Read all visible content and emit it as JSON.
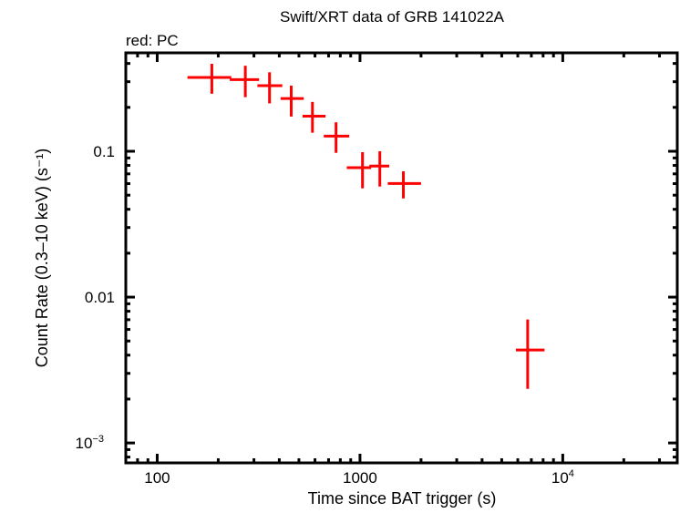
{
  "chart_data": {
    "type": "scatter",
    "title": "Swift/XRT data of GRB 141022A",
    "subtitle": "red: PC",
    "xlabel": "Time since BAT trigger (s)",
    "ylabel": "Count Rate (0.3–10 keV) (s⁻¹)",
    "xscale": "log",
    "yscale": "log",
    "xlim": [
      70,
      36700
    ],
    "ylim": [
      0.00073,
      0.473
    ],
    "grid": false,
    "x_ticks": [
      {
        "value": 100,
        "label": "100"
      },
      {
        "value": 1000,
        "label": "1000"
      },
      {
        "value": 10000,
        "label": "10",
        "sup": "4"
      }
    ],
    "y_ticks": [
      {
        "value": 0.1,
        "label": "0.1"
      },
      {
        "value": 0.01,
        "label": "0.01"
      },
      {
        "value": 0.001,
        "label": "10",
        "sup": "−3"
      }
    ],
    "series": [
      {
        "color": "#ff0000",
        "points": [
          {
            "x": 186,
            "xlo": 141,
            "xhi": 232,
            "y": 0.321,
            "ylo": 0.248,
            "yhi": 0.398
          },
          {
            "x": 272,
            "xlo": 228,
            "xhi": 318,
            "y": 0.31,
            "ylo": 0.235,
            "yhi": 0.386
          },
          {
            "x": 358,
            "xlo": 312,
            "xhi": 414,
            "y": 0.282,
            "ylo": 0.213,
            "yhi": 0.348
          },
          {
            "x": 458,
            "xlo": 406,
            "xhi": 528,
            "y": 0.23,
            "ylo": 0.173,
            "yhi": 0.282
          },
          {
            "x": 583,
            "xlo": 521,
            "xhi": 676,
            "y": 0.174,
            "ylo": 0.134,
            "yhi": 0.218
          },
          {
            "x": 762,
            "xlo": 663,
            "xhi": 885,
            "y": 0.127,
            "ylo": 0.0976,
            "yhi": 0.158
          },
          {
            "x": 1029,
            "xlo": 861,
            "xhi": 1135,
            "y": 0.0772,
            "ylo": 0.0557,
            "yhi": 0.0986
          },
          {
            "x": 1253,
            "xlo": 1112,
            "xhi": 1394,
            "y": 0.0791,
            "ylo": 0.0573,
            "yhi": 0.1
          },
          {
            "x": 1637,
            "xlo": 1371,
            "xhi": 2000,
            "y": 0.0601,
            "ylo": 0.0475,
            "yhi": 0.0729
          },
          {
            "x": 6714,
            "xlo": 5872,
            "xhi": 8128,
            "y": 0.00434,
            "ylo": 0.00235,
            "yhi": 0.00702
          }
        ]
      }
    ]
  }
}
